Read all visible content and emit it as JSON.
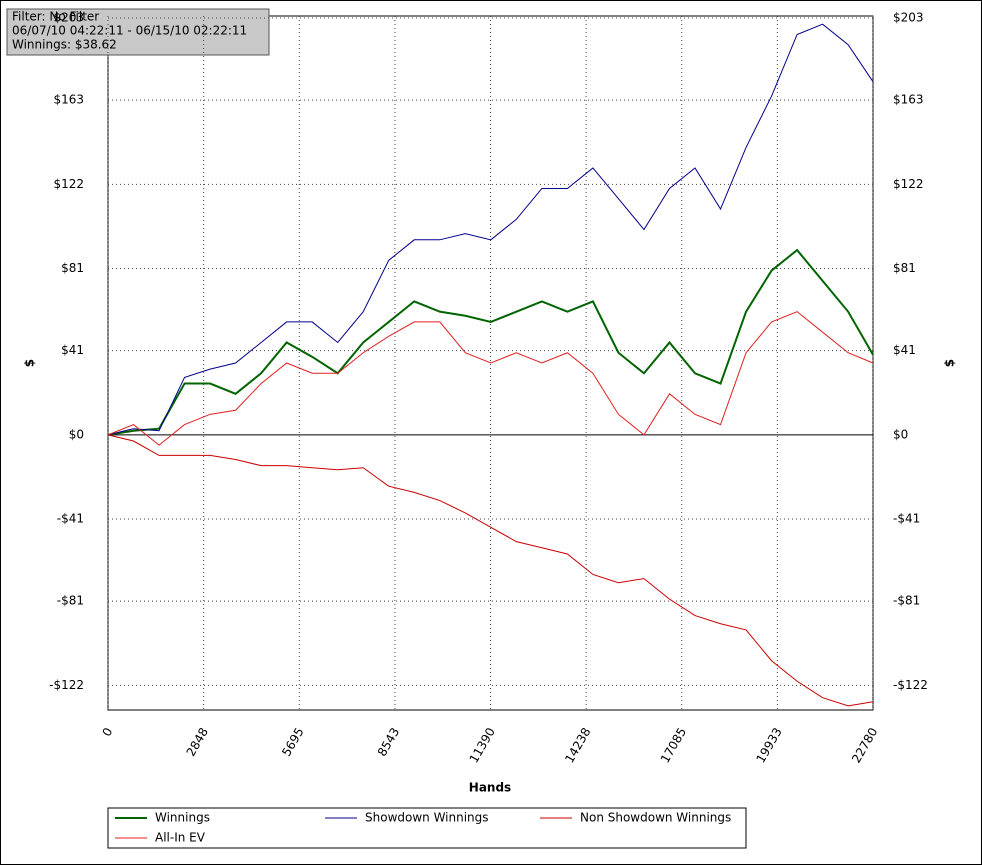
{
  "chart_data": {
    "type": "line",
    "annotations": [
      "Filter: No Filter",
      "06/07/10 04:22:11 - 06/15/10 02:22:11",
      "Winnings: $38.62"
    ],
    "xlabel": "Hands",
    "ylabel": "$",
    "x": [
      0,
      760,
      1520,
      2280,
      3040,
      3800,
      4560,
      5320,
      6080,
      6840,
      7600,
      8360,
      9120,
      9880,
      10640,
      11400,
      12160,
      12920,
      13680,
      14440,
      15200,
      15960,
      16720,
      17480,
      18240,
      19000,
      19760,
      20520,
      21280,
      22040,
      22780
    ],
    "series": [
      {
        "name": "Winnings",
        "color": "#006400",
        "values": [
          0,
          2,
          3,
          25,
          25,
          20,
          30,
          45,
          38,
          30,
          45,
          55,
          65,
          60,
          58,
          55,
          60,
          65,
          60,
          65,
          40,
          30,
          45,
          30,
          25,
          60,
          80,
          90,
          75,
          60,
          39
        ]
      },
      {
        "name": "Showdown Winnings",
        "color": "#00008b",
        "values": [
          0,
          3,
          2,
          28,
          32,
          35,
          45,
          55,
          55,
          45,
          60,
          85,
          95,
          95,
          98,
          95,
          105,
          120,
          120,
          130,
          115,
          100,
          120,
          130,
          110,
          140,
          165,
          195,
          200,
          190,
          172
        ]
      },
      {
        "name": "Non Showdown Winnings",
        "color": "#cc0000",
        "values": [
          0,
          -3,
          -10,
          -10,
          -10,
          -12,
          -15,
          -15,
          -16,
          -17,
          -16,
          -25,
          -28,
          -32,
          -38,
          -45,
          -52,
          -55,
          -58,
          -68,
          -72,
          -70,
          -80,
          -88,
          -92,
          -95,
          -110,
          -120,
          -128,
          -132,
          -130
        ]
      },
      {
        "name": "All-In EV",
        "color": "#e02020",
        "values": [
          0,
          5,
          -5,
          5,
          10,
          12,
          25,
          35,
          30,
          30,
          40,
          48,
          55,
          55,
          40,
          35,
          40,
          35,
          40,
          30,
          10,
          0,
          20,
          10,
          5,
          40,
          55,
          60,
          50,
          40,
          35
        ]
      }
    ],
    "xlim": [
      0,
      22780
    ],
    "ylim": [
      -134,
      204
    ],
    "xticks": [
      0,
      2848,
      5695,
      8543,
      11390,
      14238,
      17085,
      19933,
      22780
    ],
    "yticks": [
      {
        "value": -122,
        "label": "-$122"
      },
      {
        "value": -81,
        "label": "-$81"
      },
      {
        "value": -41,
        "label": "-$41"
      },
      {
        "value": 0,
        "label": "$0"
      },
      {
        "value": 41,
        "label": "$41"
      },
      {
        "value": 81,
        "label": "$81"
      },
      {
        "value": 122,
        "label": "$122"
      },
      {
        "value": 163,
        "label": "$163"
      },
      {
        "value": 203,
        "label": "$203"
      }
    ],
    "grid": true
  }
}
